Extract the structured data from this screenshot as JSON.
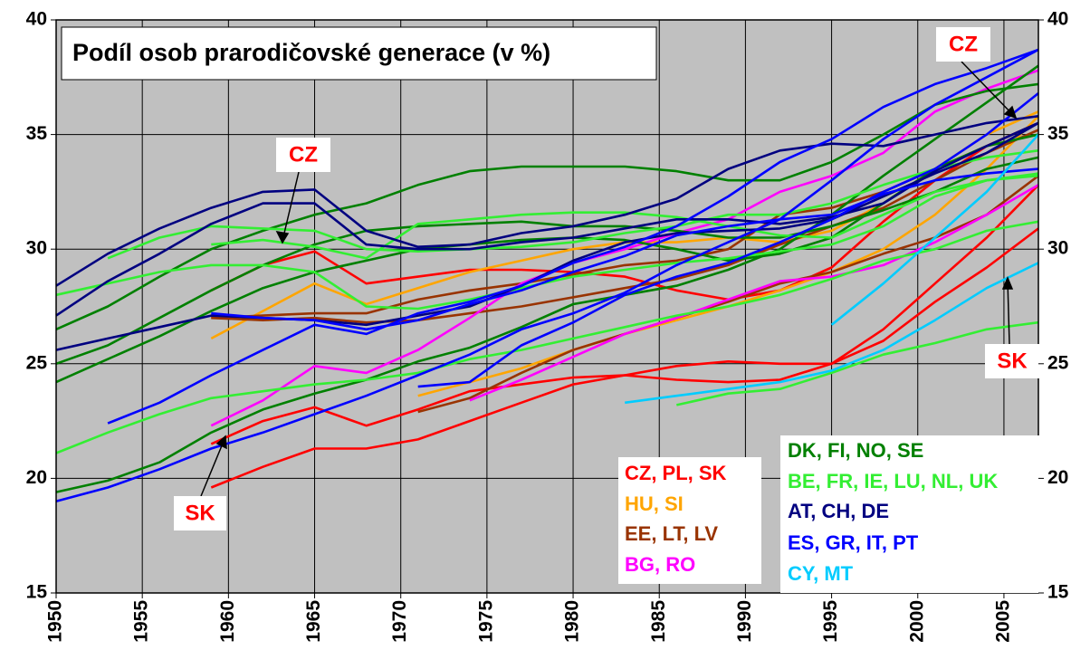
{
  "chart_data": {
    "type": "line",
    "title": "Podíl osob prarodičovské generace (v %)",
    "x": [
      1950,
      1953,
      1956,
      1959,
      1962,
      1965,
      1968,
      1971,
      1974,
      1977,
      1980,
      1983,
      1986,
      1989,
      1992,
      1995,
      1998,
      2001,
      2004,
      2007
    ],
    "xlim": [
      1950,
      2007
    ],
    "xticks": [
      1950,
      1955,
      1960,
      1965,
      1970,
      1975,
      1980,
      1985,
      1990,
      1995,
      2000,
      2005
    ],
    "ylim": [
      15,
      40
    ],
    "yticks": [
      15,
      20,
      25,
      30,
      35,
      40
    ],
    "y2lim": [
      15,
      40
    ],
    "y2ticks": [
      15,
      20,
      25,
      30,
      35,
      40
    ],
    "grid": true,
    "series": [
      {
        "name": "CZ, PL, SK",
        "color": "#ff0000",
        "values": [
          [
            null,
            null,
            null,
            28.2,
            29.3,
            29.9,
            28.5,
            28.8,
            29.1,
            29.1,
            29.0,
            28.8,
            28.2,
            27.8,
            28.2,
            29.2,
            31.2,
            33.0,
            34.5,
            35.5
          ],
          [
            null,
            null,
            null,
            21.5,
            22.5,
            23.1,
            22.3,
            23.0,
            23.8,
            24.1,
            24.4,
            24.5,
            24.3,
            24.2,
            24.3,
            25.0,
            26.5,
            28.5,
            30.5,
            32.8
          ],
          [
            null,
            null,
            null,
            19.6,
            20.5,
            21.3,
            21.3,
            21.7,
            22.5,
            23.3,
            24.1,
            24.5,
            24.9,
            25.1,
            25.0,
            25.0,
            26.0,
            27.7,
            29.2,
            30.9
          ]
        ]
      },
      {
        "name": "HU, SI",
        "color": "#ffa500",
        "values": [
          [
            null,
            null,
            null,
            26.1,
            27.3,
            28.5,
            27.6,
            28.3,
            29.0,
            29.5,
            30.0,
            30.3,
            30.3,
            30.5,
            30.3,
            30.8,
            32.0,
            33.5,
            35.0,
            36.0
          ],
          [
            null,
            null,
            null,
            null,
            null,
            null,
            null,
            23.6,
            24.2,
            24.8,
            25.6,
            26.3,
            26.9,
            27.5,
            28.2,
            29.0,
            30.0,
            31.5,
            33.5,
            35.8
          ]
        ]
      },
      {
        "name": "EE, LT, LV",
        "color": "#993300",
        "values": [
          [
            null,
            null,
            null,
            27.0,
            26.9,
            27.0,
            26.8,
            26.9,
            27.2,
            27.5,
            27.9,
            28.3,
            28.7,
            29.3,
            30.2,
            31.0,
            31.8,
            33.0,
            34.2,
            35.2
          ],
          [
            null,
            null,
            null,
            null,
            null,
            null,
            null,
            22.9,
            23.5,
            24.6,
            25.6,
            26.3,
            27.0,
            27.7,
            28.5,
            29.0,
            29.8,
            30.5,
            31.5,
            33.2
          ],
          [
            null,
            null,
            null,
            27.0,
            27.1,
            27.2,
            27.2,
            27.8,
            28.2,
            28.5,
            28.9,
            29.3,
            29.5,
            30.0,
            31.5,
            31.8,
            32.5,
            33.5,
            34.5,
            35.5
          ]
        ]
      },
      {
        "name": "BG, RO",
        "color": "#ff00ff",
        "values": [
          [
            null,
            null,
            null,
            22.3,
            23.4,
            24.9,
            24.6,
            25.6,
            27.0,
            28.5,
            29.4,
            30.0,
            30.7,
            31.3,
            32.5,
            33.2,
            34.2,
            36.0,
            37.0,
            37.8
          ],
          [
            null,
            null,
            null,
            null,
            null,
            null,
            null,
            null,
            23.4,
            24.3,
            25.3,
            26.3,
            27.0,
            27.8,
            28.6,
            28.8,
            29.3,
            30.3,
            31.5,
            32.8
          ]
        ]
      },
      {
        "name": "DK, FI, NO, SE",
        "color": "#008000",
        "values": [
          [
            26.5,
            27.5,
            28.8,
            30.0,
            30.8,
            31.5,
            32.0,
            32.8,
            33.4,
            33.6,
            33.6,
            33.6,
            33.4,
            33.0,
            33.0,
            33.8,
            35.0,
            36.3,
            36.9,
            37.2
          ],
          [
            25.0,
            25.8,
            27.0,
            28.2,
            29.3,
            30.2,
            30.8,
            31.0,
            31.1,
            31.2,
            31.0,
            31.0,
            30.8,
            30.5,
            30.5,
            31.0,
            31.7,
            32.5,
            33.5,
            34.0
          ],
          [
            24.2,
            25.2,
            26.2,
            27.3,
            28.3,
            29.0,
            29.5,
            30.0,
            30.2,
            30.4,
            30.5,
            30.4,
            30.0,
            29.5,
            29.8,
            30.5,
            32.0,
            33.5,
            34.5,
            35.0
          ],
          [
            19.4,
            19.9,
            20.7,
            22.0,
            23.0,
            23.7,
            24.3,
            25.1,
            25.7,
            26.6,
            27.6,
            28.0,
            28.4,
            29.1,
            30.0,
            31.5,
            33.2,
            34.8,
            36.4,
            38.0
          ]
        ]
      },
      {
        "name": "BE, FR, IE, LU, NL, UK",
        "color": "#33ee33",
        "values": [
          [
            null,
            29.6,
            30.5,
            31.0,
            30.9,
            30.8,
            30.0,
            29.9,
            30.0,
            30.1,
            30.3,
            30.7,
            31.0,
            31.5,
            31.5,
            32.0,
            32.8,
            33.5,
            34.0,
            34.3
          ],
          [
            28.0,
            28.5,
            29.0,
            29.3,
            29.3,
            29.0,
            27.5,
            27.4,
            27.8,
            28.3,
            28.8,
            29.1,
            29.4,
            29.6,
            29.9,
            30.2,
            31.0,
            32.3,
            33.0,
            33.3
          ],
          [
            null,
            null,
            null,
            30.2,
            30.4,
            30.1,
            29.6,
            31.1,
            31.3,
            31.5,
            31.6,
            31.6,
            31.4,
            31.0,
            30.6,
            30.5,
            31.5,
            32.5,
            33.0,
            33.2
          ],
          [
            21.1,
            22.0,
            22.8,
            23.5,
            23.8,
            24.1,
            24.3,
            24.6,
            25.2,
            25.6,
            26.1,
            26.6,
            27.1,
            27.5,
            28.0,
            28.7,
            29.5,
            30.0,
            30.8,
            31.2
          ],
          [
            null,
            null,
            null,
            null,
            null,
            null,
            null,
            null,
            null,
            null,
            null,
            null,
            23.2,
            23.7,
            23.9,
            24.6,
            25.4,
            25.9,
            26.5,
            26.8
          ]
        ]
      },
      {
        "name": "AT, CH, DE",
        "color": "#000080",
        "values": [
          [
            28.4,
            29.8,
            30.9,
            31.8,
            32.5,
            32.6,
            30.8,
            30.1,
            30.2,
            30.7,
            31.0,
            31.5,
            32.2,
            33.5,
            34.3,
            34.6,
            34.5,
            35.0,
            35.5,
            35.8
          ],
          [
            27.1,
            28.6,
            29.8,
            31.1,
            32.0,
            32.0,
            30.2,
            30.0,
            30.0,
            30.3,
            30.5,
            30.9,
            31.3,
            31.3,
            31.1,
            31.4,
            32.0,
            33.4,
            34.5,
            35.5
          ],
          [
            25.6,
            26.1,
            26.6,
            27.1,
            27.0,
            26.9,
            26.7,
            27.1,
            27.5,
            28.4,
            29.5,
            30.3,
            30.7,
            30.8,
            30.9,
            31.3,
            32.3,
            33.3,
            34.2,
            35.5
          ]
        ]
      },
      {
        "name": "ES, GR, IT, PT",
        "color": "#0000ff",
        "values": [
          [
            19.0,
            19.6,
            20.4,
            21.3,
            22.0,
            22.8,
            23.6,
            24.5,
            25.4,
            26.5,
            27.2,
            28.1,
            29.3,
            30.3,
            31.3,
            33.0,
            34.8,
            36.3,
            37.5,
            38.7
          ],
          [
            null,
            22.4,
            23.3,
            24.5,
            25.6,
            26.7,
            26.3,
            27.2,
            27.7,
            28.4,
            29.4,
            30.1,
            31.0,
            32.3,
            33.8,
            34.8,
            36.2,
            37.2,
            37.9,
            38.7
          ],
          [
            null,
            null,
            null,
            27.2,
            27.0,
            26.9,
            26.5,
            26.9,
            27.6,
            28.2,
            29.0,
            29.7,
            30.6,
            31.0,
            31.3,
            31.5,
            32.4,
            33.0,
            33.3,
            33.5
          ],
          [
            null,
            null,
            null,
            null,
            null,
            null,
            null,
            24.0,
            24.2,
            25.8,
            26.8,
            28.0,
            28.8,
            29.4,
            30.3,
            31.3,
            32.5,
            33.5,
            35.0,
            36.8
          ]
        ]
      },
      {
        "name": "CY, MT",
        "color": "#00ccff",
        "values": [
          [
            null,
            null,
            null,
            null,
            null,
            null,
            null,
            null,
            null,
            null,
            null,
            23.3,
            23.6,
            23.9,
            24.2,
            24.7,
            25.6,
            26.9,
            28.3,
            29.4
          ],
          [
            null,
            null,
            null,
            null,
            null,
            null,
            null,
            null,
            null,
            null,
            null,
            null,
            null,
            null,
            null,
            26.7,
            28.5,
            30.5,
            32.5,
            35.0
          ]
        ]
      }
    ],
    "annotations": [
      {
        "text": "CZ",
        "color": "#ff0000"
      },
      {
        "text": "CZ",
        "color": "#ff0000"
      },
      {
        "text": "SK",
        "color": "#ff0000"
      },
      {
        "text": "SK",
        "color": "#ff0000"
      }
    ]
  }
}
